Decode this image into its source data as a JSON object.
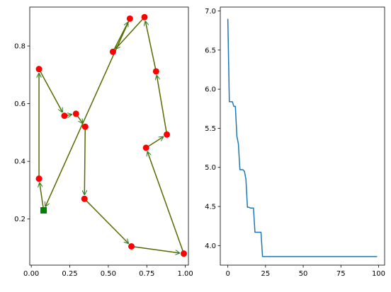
{
  "chart_data": [
    {
      "type": "line",
      "subtype": "tour-route-with-markers",
      "title": "",
      "xlabel": "",
      "ylabel": "",
      "xlim": [
        -0.01,
        1.02
      ],
      "ylim": [
        0.04,
        0.935
      ],
      "xticks": [
        "0.00",
        "0.25",
        "0.50",
        "0.75",
        "1.00"
      ],
      "xtick_values": [
        0.0,
        0.25,
        0.5,
        0.75,
        1.0
      ],
      "yticks": [
        "0.2",
        "0.4",
        "0.6",
        "0.8"
      ],
      "ytick_values": [
        0.2,
        0.4,
        0.6,
        0.8
      ],
      "grid": false,
      "legend": "none",
      "colors": {
        "route": "#556b00",
        "arrow": "#2e8b2e",
        "city": "#ff0000",
        "start": "#008000"
      },
      "start": {
        "x": 0.08,
        "y": 0.23
      },
      "route": [
        {
          "x": 0.08,
          "y": 0.23
        },
        {
          "x": 0.05,
          "y": 0.34
        },
        {
          "x": 0.05,
          "y": 0.72
        },
        {
          "x": 0.215,
          "y": 0.558
        },
        {
          "x": 0.29,
          "y": 0.565
        },
        {
          "x": 0.35,
          "y": 0.52
        },
        {
          "x": 0.345,
          "y": 0.27
        },
        {
          "x": 0.65,
          "y": 0.105
        },
        {
          "x": 0.99,
          "y": 0.08
        },
        {
          "x": 0.745,
          "y": 0.447
        },
        {
          "x": 0.88,
          "y": 0.493
        },
        {
          "x": 0.81,
          "y": 0.712
        },
        {
          "x": 0.735,
          "y": 0.9
        },
        {
          "x": 0.53,
          "y": 0.78
        },
        {
          "x": 0.64,
          "y": 0.895
        },
        {
          "x": 0.08,
          "y": 0.23
        }
      ]
    },
    {
      "type": "line",
      "title": "",
      "xlabel": "",
      "ylabel": "",
      "xlim": [
        -5,
        104
      ],
      "ylim": [
        3.75,
        7.05
      ],
      "xticks": [
        "0",
        "25",
        "50",
        "75",
        "100"
      ],
      "xtick_values": [
        0,
        25,
        50,
        75,
        100
      ],
      "yticks": [
        "4.0",
        "4.5",
        "5.0",
        "5.5",
        "6.0",
        "6.5",
        "7.0"
      ],
      "ytick_values": [
        4.0,
        4.5,
        5.0,
        5.5,
        6.0,
        6.5,
        7.0
      ],
      "grid": false,
      "legend": "none",
      "colors": {
        "line": "#1f77b4"
      },
      "series": [
        {
          "x": [
            0,
            1,
            2,
            3,
            4,
            5,
            6,
            7,
            8,
            9,
            10,
            11,
            12,
            13,
            14,
            15,
            16,
            17,
            18,
            19,
            20,
            21,
            22,
            23,
            24,
            99
          ],
          "values": [
            6.9,
            5.84,
            5.84,
            5.84,
            5.78,
            5.78,
            5.4,
            5.3,
            4.97,
            4.97,
            4.97,
            4.95,
            4.85,
            4.49,
            4.49,
            4.48,
            4.48,
            4.48,
            4.17,
            4.17,
            4.17,
            4.17,
            4.17,
            3.86,
            3.86,
            3.86
          ]
        }
      ]
    }
  ]
}
